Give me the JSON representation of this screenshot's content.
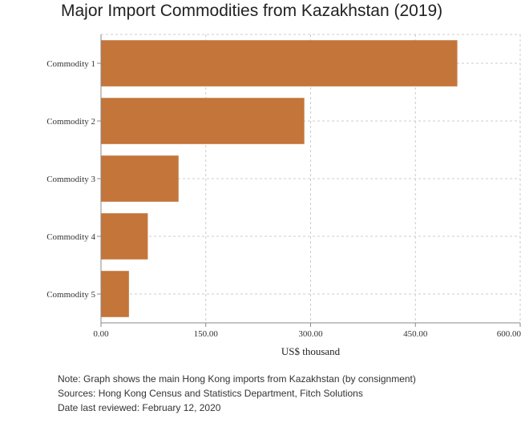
{
  "chart_data": {
    "type": "bar",
    "orientation": "horizontal",
    "title": "Major Import Commodities from Kazakhstan (2019)",
    "xlabel": "US$ thousand",
    "ylabel": "",
    "categories": [
      "Commodity 1",
      "Commodity 2",
      "Commodity 3",
      "Commodity 4",
      "Commodity 5"
    ],
    "values": [
      510,
      291,
      111,
      67,
      40
    ],
    "xlim": [
      0,
      600
    ],
    "x_ticks": [
      0,
      150,
      300,
      450,
      600
    ],
    "x_tick_labels": [
      "0.00",
      "150.00",
      "300.00",
      "450.00",
      "600.00"
    ],
    "grid": true,
    "bar_color": "#C4753A"
  },
  "notes": [
    "Note: Graph shows the main Hong Kong imports from Kazakhstan (by consignment)",
    "Sources: Hong Kong Census and Statistics Department, Fitch Solutions",
    "Date last reviewed: February 12, 2020"
  ]
}
